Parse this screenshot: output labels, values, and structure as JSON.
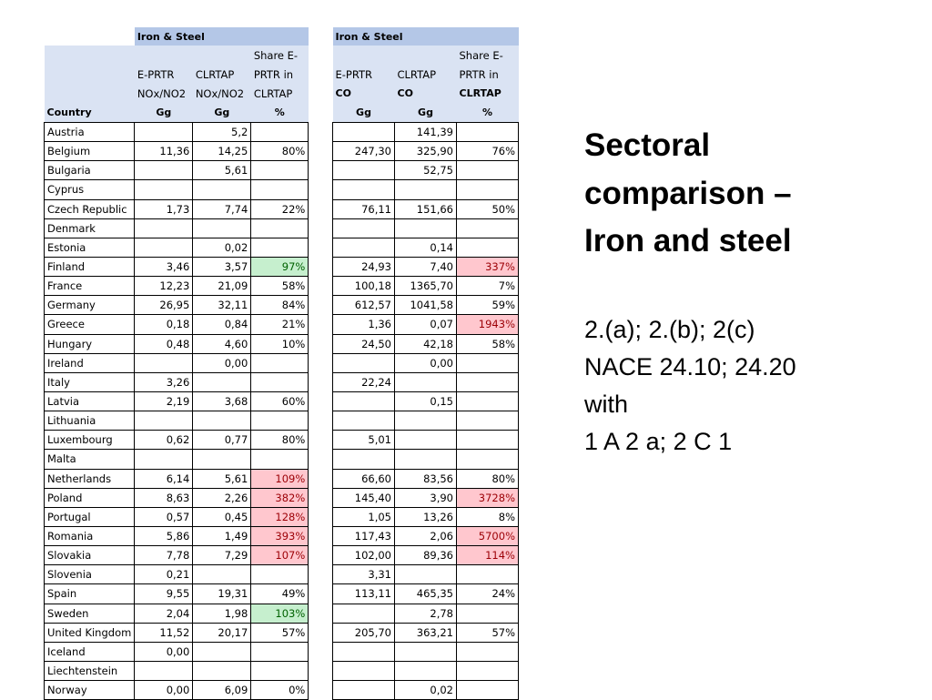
{
  "slide": {
    "title_lines": [
      "Sectoral",
      "comparison –",
      "Iron and steel"
    ],
    "subtitle_lines": [
      "2.(a); 2.(b); 2(c)",
      "NACE 24.10; 24.20",
      "with",
      "1 A 2 a; 2 C 1"
    ]
  },
  "table_nox": {
    "section_label": "Iron & Steel",
    "header_lines": [
      [
        "",
        "",
        "",
        "Share E-"
      ],
      [
        "",
        "E-PRTR",
        "CLRTAP",
        "PRTR in"
      ],
      [
        "",
        "NOx/NO2",
        "NOx/NO2",
        "CLRTAP"
      ],
      [
        "Country",
        "Gg",
        "Gg",
        "%"
      ]
    ]
  },
  "table_co": {
    "section_label": "Iron & Steel",
    "header_lines": [
      [
        "",
        "",
        "Share E-"
      ],
      [
        "E-PRTR",
        "CLRTAP",
        "PRTR in"
      ],
      [
        "CO",
        "CO",
        "CLRTAP"
      ],
      [
        "Gg",
        "Gg",
        "%"
      ]
    ]
  },
  "rows": [
    {
      "country": "Austria",
      "nox": [
        "",
        "5,2",
        ""
      ],
      "co": [
        "",
        "141,39",
        ""
      ]
    },
    {
      "country": "Belgium",
      "nox": [
        "11,36",
        "14,25",
        "80%"
      ],
      "co": [
        "247,30",
        "325,90",
        "76%"
      ]
    },
    {
      "country": "Bulgaria",
      "nox": [
        "",
        "5,61",
        ""
      ],
      "co": [
        "",
        "52,75",
        ""
      ]
    },
    {
      "country": "Cyprus",
      "nox": [
        "",
        "",
        ""
      ],
      "co": [
        "",
        "",
        ""
      ]
    },
    {
      "country": "Czech Republic",
      "nox": [
        "1,73",
        "7,74",
        "22%"
      ],
      "co": [
        "76,11",
        "151,66",
        "50%"
      ]
    },
    {
      "country": "Denmark",
      "nox": [
        "",
        "",
        ""
      ],
      "co": [
        "",
        "",
        ""
      ]
    },
    {
      "country": "Estonia",
      "nox": [
        "",
        "0,02",
        ""
      ],
      "co": [
        "",
        "0,14",
        ""
      ]
    },
    {
      "country": "Finland",
      "nox": [
        "3,46",
        "3,57",
        "97%"
      ],
      "co": [
        "24,93",
        "7,40",
        "337%"
      ],
      "nox_flag": "good",
      "co_flag": "bad"
    },
    {
      "country": "France",
      "nox": [
        "12,23",
        "21,09",
        "58%"
      ],
      "co": [
        "100,18",
        "1365,70",
        "7%"
      ]
    },
    {
      "country": "Germany",
      "nox": [
        "26,95",
        "32,11",
        "84%"
      ],
      "co": [
        "612,57",
        "1041,58",
        "59%"
      ]
    },
    {
      "country": "Greece",
      "nox": [
        "0,18",
        "0,84",
        "21%"
      ],
      "co": [
        "1,36",
        "0,07",
        "1943%"
      ],
      "co_flag": "bad"
    },
    {
      "country": "Hungary",
      "nox": [
        "0,48",
        "4,60",
        "10%"
      ],
      "co": [
        "24,50",
        "42,18",
        "58%"
      ]
    },
    {
      "country": "Ireland",
      "nox": [
        "",
        "0,00",
        ""
      ],
      "co": [
        "",
        "0,00",
        ""
      ]
    },
    {
      "country": "Italy",
      "nox": [
        "3,26",
        "",
        ""
      ],
      "co": [
        "22,24",
        "",
        ""
      ]
    },
    {
      "country": "Latvia",
      "nox": [
        "2,19",
        "3,68",
        "60%"
      ],
      "co": [
        "",
        "0,15",
        ""
      ]
    },
    {
      "country": "Lithuania",
      "nox": [
        "",
        "",
        ""
      ],
      "co": [
        "",
        "",
        ""
      ]
    },
    {
      "country": "Luxembourg",
      "nox": [
        "0,62",
        "0,77",
        "80%"
      ],
      "co": [
        "5,01",
        "",
        ""
      ]
    },
    {
      "country": "Malta",
      "nox": [
        "",
        "",
        ""
      ],
      "co": [
        "",
        "",
        ""
      ]
    },
    {
      "country": "Netherlands",
      "nox": [
        "6,14",
        "5,61",
        "109%"
      ],
      "co": [
        "66,60",
        "83,56",
        "80%"
      ],
      "nox_flag": "bad"
    },
    {
      "country": "Poland",
      "nox": [
        "8,63",
        "2,26",
        "382%"
      ],
      "co": [
        "145,40",
        "3,90",
        "3728%"
      ],
      "nox_flag": "bad",
      "co_flag": "bad"
    },
    {
      "country": "Portugal",
      "nox": [
        "0,57",
        "0,45",
        "128%"
      ],
      "co": [
        "1,05",
        "13,26",
        "8%"
      ],
      "nox_flag": "bad"
    },
    {
      "country": "Romania",
      "nox": [
        "5,86",
        "1,49",
        "393%"
      ],
      "co": [
        "117,43",
        "2,06",
        "5700%"
      ],
      "nox_flag": "bad",
      "co_flag": "bad"
    },
    {
      "country": "Slovakia",
      "nox": [
        "7,78",
        "7,29",
        "107%"
      ],
      "co": [
        "102,00",
        "89,36",
        "114%"
      ],
      "nox_flag": "bad",
      "co_flag": "bad"
    },
    {
      "country": "Slovenia",
      "nox": [
        "0,21",
        "",
        ""
      ],
      "co": [
        "3,31",
        "",
        ""
      ]
    },
    {
      "country": "Spain",
      "nox": [
        "9,55",
        "19,31",
        "49%"
      ],
      "co": [
        "113,11",
        "465,35",
        "24%"
      ]
    },
    {
      "country": "Sweden",
      "nox": [
        "2,04",
        "1,98",
        "103%"
      ],
      "co": [
        "",
        "2,78",
        ""
      ],
      "nox_flag": "good"
    },
    {
      "country": "United Kingdom",
      "nox": [
        "11,52",
        "20,17",
        "57%"
      ],
      "co": [
        "205,70",
        "363,21",
        "57%"
      ]
    },
    {
      "country": "Iceland",
      "nox": [
        "0,00",
        "",
        ""
      ],
      "co": [
        "",
        "",
        ""
      ]
    },
    {
      "country": "Liechtenstein",
      "nox": [
        "",
        "",
        ""
      ],
      "co": [
        "",
        "",
        ""
      ]
    },
    {
      "country": "Norway",
      "nox": [
        "0,00",
        "6,09",
        "0%"
      ],
      "co": [
        "",
        "0,02",
        ""
      ]
    }
  ],
  "colors": {
    "header_dark": "#b4c7e7",
    "header_light": "#dae3f3",
    "over_100_bg": "#ffc7ce",
    "over_100_text": "#9c0006",
    "near_100_bg": "#c6efce",
    "near_100_text": "#006100"
  }
}
